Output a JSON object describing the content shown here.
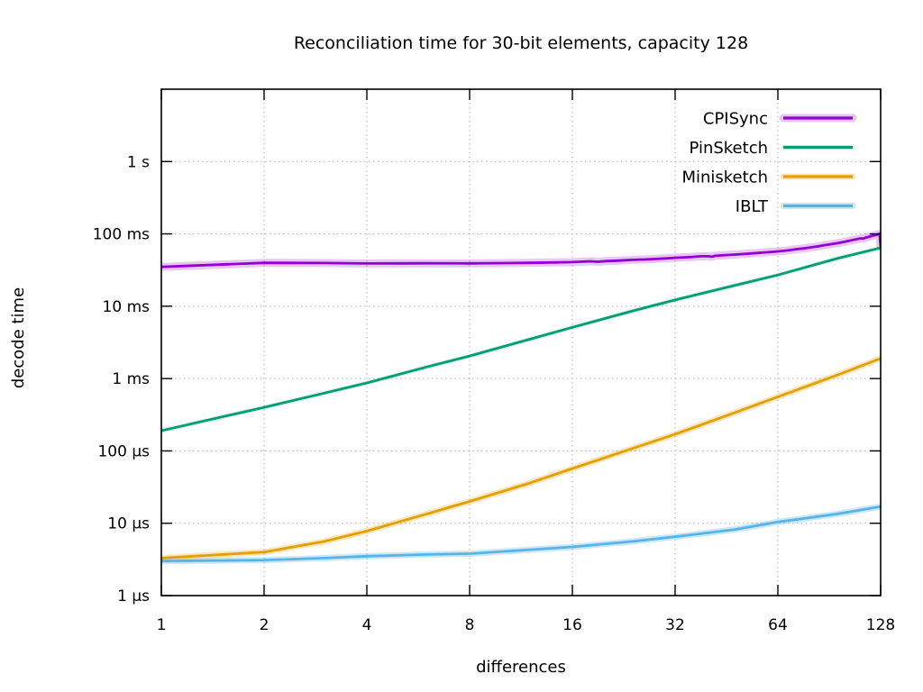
{
  "chart_data": {
    "type": "line",
    "title": "Reconciliation time for 30-bit elements, capacity 128",
    "xlabel": "differences",
    "ylabel": "decode time",
    "x_scale": "log2",
    "y_scale": "log10",
    "xlim": [
      1,
      128
    ],
    "ylim_seconds": [
      1e-06,
      10
    ],
    "grid": true,
    "legend_position": "top-right",
    "x_ticks": [
      {
        "value": 1,
        "label": "1"
      },
      {
        "value": 2,
        "label": "2"
      },
      {
        "value": 4,
        "label": "4"
      },
      {
        "value": 8,
        "label": "8"
      },
      {
        "value": 16,
        "label": "16"
      },
      {
        "value": 32,
        "label": "32"
      },
      {
        "value": 64,
        "label": "64"
      },
      {
        "value": 128,
        "label": "128"
      }
    ],
    "y_ticks": [
      {
        "value": 1e-06,
        "label": "1 µs"
      },
      {
        "value": 1e-05,
        "label": "10 µs"
      },
      {
        "value": 0.0001,
        "label": "100 µs"
      },
      {
        "value": 0.001,
        "label": "1 ms"
      },
      {
        "value": 0.01,
        "label": "10 ms"
      },
      {
        "value": 0.1,
        "label": "100 ms"
      },
      {
        "value": 1,
        "label": "1 s"
      }
    ],
    "series": [
      {
        "name": "CPISync",
        "color": "#9400d3",
        "band_width": 9,
        "band_opacity": 0.22,
        "points_x_seconds": [
          [
            1,
            0.035
          ],
          [
            2,
            0.0398
          ],
          [
            3,
            0.0396
          ],
          [
            4,
            0.039
          ],
          [
            5,
            0.0391
          ],
          [
            6,
            0.0392
          ],
          [
            8,
            0.0391
          ],
          [
            10,
            0.0394
          ],
          [
            12,
            0.0398
          ],
          [
            14,
            0.0402
          ],
          [
            16,
            0.0407
          ],
          [
            18,
            0.0418
          ],
          [
            19,
            0.0412
          ],
          [
            20,
            0.042
          ],
          [
            22,
            0.0428
          ],
          [
            24,
            0.0437
          ],
          [
            26,
            0.0443
          ],
          [
            28,
            0.045
          ],
          [
            30,
            0.0458
          ],
          [
            32,
            0.0467
          ],
          [
            34,
            0.0474
          ],
          [
            36,
            0.0481
          ],
          [
            38,
            0.049
          ],
          [
            40,
            0.049
          ],
          [
            41,
            0.0484
          ],
          [
            42,
            0.0497
          ],
          [
            44,
            0.0505
          ],
          [
            48,
            0.0518
          ],
          [
            52,
            0.0532
          ],
          [
            56,
            0.0546
          ],
          [
            60,
            0.0558
          ],
          [
            64,
            0.0572
          ],
          [
            68,
            0.059
          ],
          [
            72,
            0.0612
          ],
          [
            76,
            0.063
          ],
          [
            80,
            0.0652
          ],
          [
            84,
            0.0672
          ],
          [
            88,
            0.07
          ],
          [
            92,
            0.0722
          ],
          [
            96,
            0.0748
          ],
          [
            100,
            0.0775
          ],
          [
            104,
            0.0808
          ],
          [
            108,
            0.084
          ],
          [
            112,
            0.0868
          ],
          [
            114,
            0.086
          ],
          [
            116,
            0.089
          ],
          [
            120,
            0.093
          ],
          [
            124,
            0.0965
          ],
          [
            127,
            0.1
          ],
          [
            128,
            0.067
          ]
        ]
      },
      {
        "name": "PinSketch",
        "color": "#009e73",
        "band_width": 5,
        "band_opacity": 0.14,
        "points_x_seconds": [
          [
            1,
            0.00019
          ],
          [
            2,
            0.0004
          ],
          [
            3,
            0.00063
          ],
          [
            4,
            0.00087
          ],
          [
            6,
            0.00145
          ],
          [
            8,
            0.00205
          ],
          [
            12,
            0.0035
          ],
          [
            16,
            0.0051
          ],
          [
            24,
            0.0086
          ],
          [
            32,
            0.0122
          ],
          [
            48,
            0.0195
          ],
          [
            64,
            0.027
          ],
          [
            96,
            0.046
          ],
          [
            128,
            0.064
          ]
        ]
      },
      {
        "name": "Minisketch",
        "color": "#e69f00",
        "band_width": 7,
        "band_opacity": 0.25,
        "points_x_seconds": [
          [
            1,
            3.3e-06
          ],
          [
            2,
            4e-06
          ],
          [
            3,
            5.6e-06
          ],
          [
            4,
            7.8e-06
          ],
          [
            6,
            1.35e-05
          ],
          [
            8,
            2e-05
          ],
          [
            12,
            3.6e-05
          ],
          [
            16,
            5.7e-05
          ],
          [
            24,
            0.000108
          ],
          [
            32,
            0.00017
          ],
          [
            48,
            0.00034
          ],
          [
            64,
            0.00056
          ],
          [
            96,
            0.00113
          ],
          [
            128,
            0.0019
          ]
        ]
      },
      {
        "name": "IBLT",
        "color": "#56b4e9",
        "band_width": 7,
        "band_opacity": 0.3,
        "points_x_seconds": [
          [
            1,
            3e-06
          ],
          [
            2,
            3.1e-06
          ],
          [
            3,
            3.3e-06
          ],
          [
            4,
            3.5e-06
          ],
          [
            6,
            3.7e-06
          ],
          [
            8,
            3.8e-06
          ],
          [
            12,
            4.3e-06
          ],
          [
            16,
            4.7e-06
          ],
          [
            24,
            5.6e-06
          ],
          [
            32,
            6.5e-06
          ],
          [
            48,
            8.2e-06
          ],
          [
            64,
            1.04e-05
          ],
          [
            96,
            1.35e-05
          ],
          [
            128,
            1.7e-05
          ]
        ]
      }
    ],
    "colors": {
      "background": "#ffffff",
      "border": "#000000",
      "grid": "#b5b5b5",
      "text": "#000000"
    }
  }
}
